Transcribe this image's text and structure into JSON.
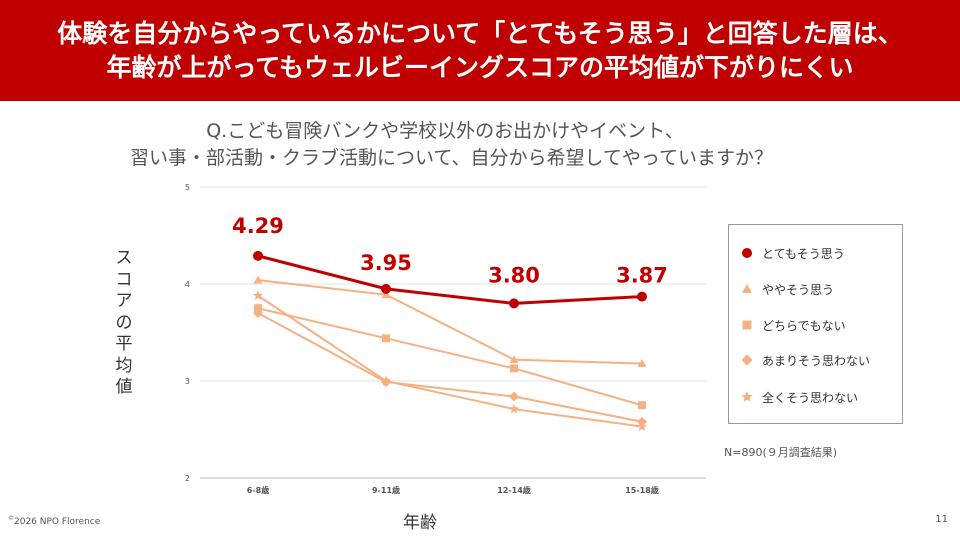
{
  "header": {
    "title_line1": "体験を自分からやっているかについて「とてもそう思う」と回答した層は、",
    "title_line2": "年齢が上がってもウェルビーイングスコアの平均値が下がりにくい"
  },
  "question": {
    "line1": "Q.こども冒険バンクや学校以外のお出かけやイベント、",
    "line2": "習い事・部活動・クラブ活動について、自分から希望してやっていますか？"
  },
  "chart_data": {
    "type": "line",
    "categories": [
      "6-8歳",
      "9-11歳",
      "12-14歳",
      "15-18歳"
    ],
    "xlabel": "年齢",
    "ylabel": "スコアの平均値",
    "ylim": [
      2,
      5
    ],
    "yticks": [
      2,
      3,
      4,
      5
    ],
    "grid": true,
    "legend_position": "right",
    "series": [
      {
        "name": "とてもそう思う",
        "values": [
          4.29,
          3.95,
          3.8,
          3.87
        ],
        "marker": "circle",
        "color": "#c00000",
        "labels": [
          "4.29",
          "3.95",
          "3.80",
          "3.87"
        ]
      },
      {
        "name": "ややそう思う",
        "values": [
          4.04,
          3.89,
          3.22,
          3.18
        ],
        "marker": "triangle",
        "color": "#f4b183"
      },
      {
        "name": "どちらでもない",
        "values": [
          3.75,
          3.44,
          3.13,
          2.75
        ],
        "marker": "square",
        "color": "#f4b183"
      },
      {
        "name": "あまりそう思わない",
        "values": [
          3.7,
          2.99,
          2.84,
          2.58
        ],
        "marker": "diamond",
        "color": "#f4b183"
      },
      {
        "name": "全くそう思わない",
        "values": [
          3.88,
          3.0,
          2.71,
          2.53
        ],
        "marker": "star",
        "color": "#f4b183"
      }
    ]
  },
  "note": "N=890(９月調査結果)",
  "footer": {
    "copyright_symbol": "©",
    "copyright": "2026 NPO Florence",
    "page": "11"
  }
}
